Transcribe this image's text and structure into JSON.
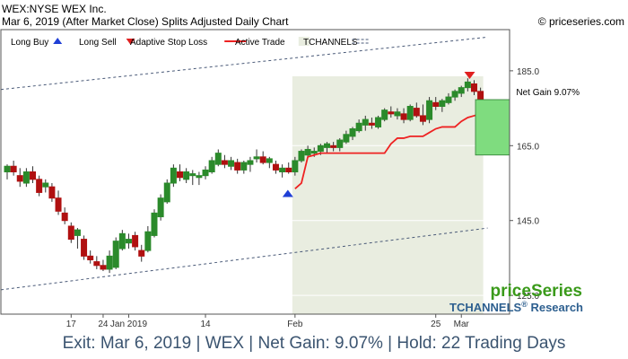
{
  "header": {
    "ticker_line": "WEX:NYSE WEX Inc.",
    "date_line": "Mar 6, 2019 (After Market Close)  Splits Adjusted Daily Chart",
    "copyright": "© priceseries.com"
  },
  "legend": [
    {
      "label": "Long Buy",
      "symbol": "up-arrow",
      "color": "#1f3fd6"
    },
    {
      "label": "Long Sell",
      "symbol": "down-arrow",
      "color": "#e02020"
    },
    {
      "label": "Adaptive Stop Loss",
      "symbol": "line",
      "color": "#ee2222"
    },
    {
      "label": "Active Trade",
      "symbol": "box",
      "color": "#e9ede0"
    },
    {
      "label": "TCHANNELS",
      "symbol": "dash",
      "color": "#4a5a78"
    }
  ],
  "brand": {
    "name": "priceSeries",
    "research": "TCHANNELS",
    "research_reg": "®",
    "research_suffix": " Research"
  },
  "net_gain_label": "Net Gain 9.07%",
  "footer": "Exit: Mar 6, 2019 | WEX | Net Gain: 9.07% | Hold: 22 Trading Days",
  "colors": {
    "up_candle": "#2b8a2b",
    "down_candle": "#b01010",
    "stop_line": "#ee2222",
    "trade_bg": "#e9ede0",
    "gain_box": "#7fdc7f",
    "channel": "#4a5a78",
    "footer_text": "#3b5470",
    "brand_green": "#3a9a1a",
    "brand_blue": "#2d5f8f"
  },
  "chart_data": {
    "type": "candlestick",
    "y_axis": {
      "min": 120,
      "max": 196,
      "ticks": [
        125,
        145,
        165,
        185
      ],
      "side": "right"
    },
    "x_labels": [
      {
        "label": "17",
        "index": 10
      },
      {
        "label": "24",
        "index": 15
      },
      {
        "label": "Jan 2019",
        "index": 19
      },
      {
        "label": "14",
        "index": 31
      },
      {
        "label": "Feb",
        "index": 45
      },
      {
        "label": "25",
        "index": 67
      },
      {
        "label": "Mar",
        "index": 71
      }
    ],
    "candles": [
      [
        158,
        160,
        156,
        159.5
      ],
      [
        159.5,
        161,
        157,
        158
      ],
      [
        157,
        159,
        154,
        155.5
      ],
      [
        155,
        159,
        154,
        158
      ],
      [
        158,
        159.5,
        155,
        156
      ],
      [
        156,
        157,
        151.5,
        152.5
      ],
      [
        154,
        156,
        152.5,
        155
      ],
      [
        154,
        155,
        150,
        151
      ],
      [
        151,
        153,
        146.5,
        147.5
      ],
      [
        147,
        148.5,
        144,
        145
      ],
      [
        143.5,
        144.5,
        139,
        140
      ],
      [
        141,
        143,
        137.5,
        142.5
      ],
      [
        140,
        141,
        134.5,
        135.5
      ],
      [
        135.5,
        137,
        133.5,
        134.5
      ],
      [
        134,
        135.5,
        132,
        133
      ],
      [
        133,
        134.5,
        131.5,
        132
      ],
      [
        132,
        137,
        131,
        135.5
      ],
      [
        132.5,
        140.5,
        132,
        139.5
      ],
      [
        137.5,
        142.5,
        137,
        141.5
      ],
      [
        139,
        141.5,
        137.5,
        140
      ],
      [
        141,
        142,
        137,
        138
      ],
      [
        137,
        138.5,
        134,
        135.5
      ],
      [
        137,
        143.5,
        136.5,
        142
      ],
      [
        141,
        148,
        140.5,
        147
      ],
      [
        146,
        152,
        145,
        151
      ],
      [
        150,
        156,
        149.5,
        155
      ],
      [
        155,
        160,
        154,
        159
      ],
      [
        158,
        160,
        155.5,
        156.5
      ],
      [
        156,
        159,
        155,
        158
      ],
      [
        157,
        158.5,
        154.5,
        157.5
      ],
      [
        156.5,
        158,
        154.5,
        157
      ],
      [
        157,
        159.5,
        156,
        158.5
      ],
      [
        158,
        162,
        157.5,
        161
      ],
      [
        160,
        164,
        159.5,
        163
      ],
      [
        161,
        162.5,
        159,
        160
      ],
      [
        159.5,
        162,
        158.5,
        161
      ],
      [
        160.5,
        161.5,
        157.5,
        158.5
      ],
      [
        158.5,
        161,
        157.5,
        160.5
      ],
      [
        160,
        162,
        158,
        161
      ],
      [
        161.5,
        164,
        160.5,
        162
      ],
      [
        162,
        163.5,
        160,
        160.5
      ],
      [
        160.5,
        162,
        159,
        161.5
      ],
      [
        160,
        161,
        157.5,
        158.5
      ],
      [
        158,
        160,
        156.5,
        159
      ],
      [
        159,
        160.5,
        157.5,
        158
      ],
      [
        158,
        162,
        157,
        161
      ],
      [
        161,
        164,
        160.5,
        163.5
      ],
      [
        162.5,
        165,
        162,
        164
      ],
      [
        163,
        164.5,
        162,
        163.5
      ],
      [
        163.5,
        165.5,
        162.5,
        165
      ],
      [
        164.5,
        166,
        163,
        165.5
      ],
      [
        165,
        166,
        163.5,
        164.5
      ],
      [
        164.5,
        167,
        163.5,
        166.5
      ],
      [
        166,
        169,
        165.5,
        168
      ],
      [
        167.5,
        170,
        166.5,
        169.5
      ],
      [
        169,
        172,
        168.5,
        171
      ],
      [
        170.5,
        173,
        169,
        172
      ],
      [
        171,
        172.5,
        169.5,
        170.5
      ],
      [
        170,
        173,
        169.5,
        172.5
      ],
      [
        172,
        175,
        171.5,
        174.5
      ],
      [
        174,
        175.5,
        172.5,
        173.5
      ],
      [
        173,
        175,
        172,
        174
      ],
      [
        173.5,
        175,
        171,
        172
      ],
      [
        172,
        176,
        171.5,
        175.5
      ],
      [
        175,
        176.5,
        172.5,
        173
      ],
      [
        173,
        176,
        170.5,
        171.5
      ],
      [
        172,
        178,
        171,
        177
      ],
      [
        176.5,
        178,
        174.5,
        175.5
      ],
      [
        175.5,
        177.5,
        174,
        177
      ],
      [
        176.5,
        179,
        176,
        178
      ],
      [
        178,
        180,
        177,
        179.5
      ],
      [
        179,
        181,
        178,
        180.5
      ],
      [
        180.5,
        183,
        179.5,
        182
      ],
      [
        181.5,
        182.5,
        178.5,
        179.5
      ],
      [
        179.5,
        180.5,
        175.5,
        176.5
      ]
    ],
    "stop_loss": [
      [
        45,
        153.5
      ],
      [
        46,
        155
      ],
      [
        47,
        162
      ],
      [
        48,
        162.5
      ],
      [
        49,
        163
      ],
      [
        50,
        163
      ],
      [
        51,
        163
      ],
      [
        52,
        163
      ],
      [
        53,
        163
      ],
      [
        54,
        163
      ],
      [
        55,
        163
      ],
      [
        56,
        163
      ],
      [
        57,
        163
      ],
      [
        58,
        163
      ],
      [
        59,
        163
      ],
      [
        60,
        165.5
      ],
      [
        61,
        167
      ],
      [
        62,
        167
      ],
      [
        63,
        167.5
      ],
      [
        64,
        167.5
      ],
      [
        65,
        167.5
      ],
      [
        66,
        168.5
      ],
      [
        67,
        169.5
      ],
      [
        68,
        170
      ],
      [
        69,
        170
      ],
      [
        70,
        170
      ],
      [
        71,
        171.5
      ],
      [
        72,
        172.5
      ],
      [
        73,
        173
      ],
      [
        74,
        173.5
      ]
    ],
    "buy_signal": {
      "index": 45,
      "price": 152
    },
    "sell_signal": {
      "index": 73,
      "price": 184
    },
    "active_trade": {
      "start_index": 45,
      "end_index": 74
    },
    "channel_upper": [
      [
        0,
        180
      ],
      [
        74,
        194
      ]
    ],
    "channel_lower": [
      [
        0,
        126.5
      ],
      [
        74,
        143
      ]
    ],
    "net_gain": {
      "entry": 162.5,
      "exit": 177.3,
      "percent": 9.07
    }
  }
}
